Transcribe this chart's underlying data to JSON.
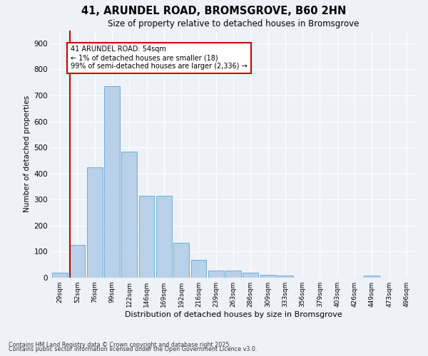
{
  "title1": "41, ARUNDEL ROAD, BROMSGROVE, B60 2HN",
  "title2": "Size of property relative to detached houses in Bromsgrove",
  "xlabel": "Distribution of detached houses by size in Bromsgrove",
  "ylabel": "Number of detached properties",
  "categories": [
    "29sqm",
    "52sqm",
    "76sqm",
    "99sqm",
    "122sqm",
    "146sqm",
    "169sqm",
    "192sqm",
    "216sqm",
    "239sqm",
    "263sqm",
    "286sqm",
    "309sqm",
    "333sqm",
    "356sqm",
    "379sqm",
    "403sqm",
    "426sqm",
    "449sqm",
    "473sqm",
    "496sqm"
  ],
  "values": [
    18,
    125,
    425,
    735,
    485,
    315,
    315,
    135,
    68,
    28,
    28,
    18,
    10,
    8,
    0,
    0,
    0,
    0,
    8,
    0,
    0
  ],
  "bar_color": "#b8d0e8",
  "bar_edge_color": "#6baed6",
  "background_color": "#eef2f8",
  "grid_color": "#ffffff",
  "vline_color": "#cc0000",
  "vline_x_index": 1,
  "annotation_text": "41 ARUNDEL ROAD: 54sqm\n← 1% of detached houses are smaller (18)\n99% of semi-detached houses are larger (2,336) →",
  "footer1": "Contains HM Land Registry data © Crown copyright and database right 2025.",
  "footer2": "Contains public sector information licensed under the Open Government Licence v3.0.",
  "ylim": [
    0,
    950
  ],
  "yticks": [
    0,
    100,
    200,
    300,
    400,
    500,
    600,
    700,
    800,
    900
  ]
}
